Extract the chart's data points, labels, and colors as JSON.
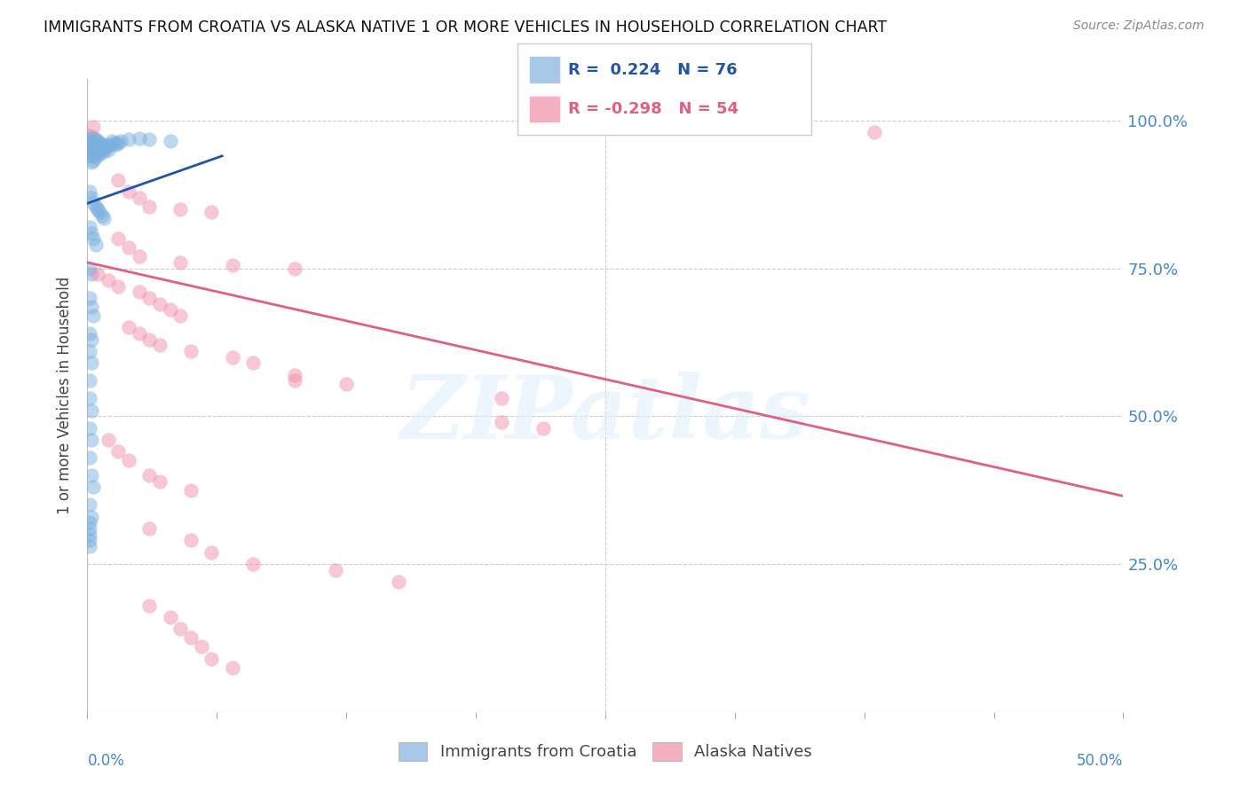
{
  "title": "IMMIGRANTS FROM CROATIA VS ALASKA NATIVE 1 OR MORE VEHICLES IN HOUSEHOLD CORRELATION CHART",
  "source": "Source: ZipAtlas.com",
  "ylabel": "1 or more Vehicles in Household",
  "ytick_values": [
    1.0,
    0.75,
    0.5,
    0.25
  ],
  "ytick_labels_right": [
    "100.0%",
    "75.0%",
    "50.0%",
    "25.0%"
  ],
  "xmin": 0.0,
  "xmax": 0.5,
  "ymin": 0.0,
  "ymax": 1.07,
  "watermark_text": "ZIPatlas",
  "blue_color": "#7ab0de",
  "pink_color": "#f090a8",
  "blue_line_color": "#2255aa",
  "pink_line_color": "#e06080",
  "blue_legend_color": "#a8c8e8",
  "pink_legend_color": "#f4b0c0",
  "blue_R": 0.224,
  "blue_N": 76,
  "pink_R": -0.298,
  "pink_N": 54,
  "blue_scatter": [
    [
      0.001,
      0.975
    ],
    [
      0.001,
      0.965
    ],
    [
      0.001,
      0.955
    ],
    [
      0.002,
      0.97
    ],
    [
      0.002,
      0.96
    ],
    [
      0.002,
      0.95
    ],
    [
      0.002,
      0.94
    ],
    [
      0.002,
      0.93
    ],
    [
      0.003,
      0.972
    ],
    [
      0.003,
      0.962
    ],
    [
      0.003,
      0.952
    ],
    [
      0.003,
      0.942
    ],
    [
      0.003,
      0.932
    ],
    [
      0.004,
      0.968
    ],
    [
      0.004,
      0.958
    ],
    [
      0.004,
      0.948
    ],
    [
      0.004,
      0.938
    ],
    [
      0.005,
      0.965
    ],
    [
      0.005,
      0.955
    ],
    [
      0.005,
      0.945
    ],
    [
      0.006,
      0.963
    ],
    [
      0.006,
      0.953
    ],
    [
      0.006,
      0.943
    ],
    [
      0.007,
      0.96
    ],
    [
      0.007,
      0.95
    ],
    [
      0.008,
      0.958
    ],
    [
      0.008,
      0.948
    ],
    [
      0.009,
      0.955
    ],
    [
      0.01,
      0.96
    ],
    [
      0.01,
      0.95
    ],
    [
      0.011,
      0.958
    ],
    [
      0.012,
      0.965
    ],
    [
      0.013,
      0.962
    ],
    [
      0.014,
      0.96
    ],
    [
      0.015,
      0.962
    ],
    [
      0.016,
      0.965
    ],
    [
      0.02,
      0.968
    ],
    [
      0.025,
      0.97
    ],
    [
      0.03,
      0.968
    ],
    [
      0.04,
      0.965
    ],
    [
      0.001,
      0.88
    ],
    [
      0.002,
      0.87
    ],
    [
      0.003,
      0.86
    ],
    [
      0.004,
      0.855
    ],
    [
      0.005,
      0.85
    ],
    [
      0.006,
      0.845
    ],
    [
      0.007,
      0.84
    ],
    [
      0.008,
      0.835
    ],
    [
      0.001,
      0.82
    ],
    [
      0.002,
      0.81
    ],
    [
      0.003,
      0.8
    ],
    [
      0.004,
      0.79
    ],
    [
      0.001,
      0.75
    ],
    [
      0.002,
      0.74
    ],
    [
      0.001,
      0.7
    ],
    [
      0.002,
      0.685
    ],
    [
      0.003,
      0.67
    ],
    [
      0.001,
      0.64
    ],
    [
      0.002,
      0.63
    ],
    [
      0.001,
      0.61
    ],
    [
      0.002,
      0.59
    ],
    [
      0.001,
      0.56
    ],
    [
      0.001,
      0.53
    ],
    [
      0.002,
      0.51
    ],
    [
      0.001,
      0.48
    ],
    [
      0.002,
      0.46
    ],
    [
      0.001,
      0.43
    ],
    [
      0.002,
      0.4
    ],
    [
      0.003,
      0.38
    ],
    [
      0.001,
      0.35
    ],
    [
      0.002,
      0.33
    ],
    [
      0.001,
      0.32
    ],
    [
      0.001,
      0.31
    ],
    [
      0.001,
      0.3
    ],
    [
      0.001,
      0.29
    ],
    [
      0.001,
      0.28
    ]
  ],
  "pink_scatter": [
    [
      0.003,
      0.99
    ],
    [
      0.38,
      0.98
    ],
    [
      0.015,
      0.9
    ],
    [
      0.02,
      0.88
    ],
    [
      0.025,
      0.87
    ],
    [
      0.03,
      0.855
    ],
    [
      0.045,
      0.85
    ],
    [
      0.06,
      0.845
    ],
    [
      0.015,
      0.8
    ],
    [
      0.02,
      0.785
    ],
    [
      0.025,
      0.77
    ],
    [
      0.045,
      0.76
    ],
    [
      0.07,
      0.755
    ],
    [
      0.1,
      0.75
    ],
    [
      0.005,
      0.74
    ],
    [
      0.01,
      0.73
    ],
    [
      0.015,
      0.72
    ],
    [
      0.025,
      0.71
    ],
    [
      0.03,
      0.7
    ],
    [
      0.035,
      0.69
    ],
    [
      0.04,
      0.68
    ],
    [
      0.045,
      0.67
    ],
    [
      0.02,
      0.65
    ],
    [
      0.025,
      0.64
    ],
    [
      0.03,
      0.63
    ],
    [
      0.035,
      0.62
    ],
    [
      0.05,
      0.61
    ],
    [
      0.07,
      0.6
    ],
    [
      0.08,
      0.59
    ],
    [
      0.1,
      0.57
    ],
    [
      0.1,
      0.56
    ],
    [
      0.125,
      0.555
    ],
    [
      0.2,
      0.53
    ],
    [
      0.2,
      0.49
    ],
    [
      0.22,
      0.48
    ],
    [
      0.01,
      0.46
    ],
    [
      0.015,
      0.44
    ],
    [
      0.02,
      0.425
    ],
    [
      0.03,
      0.4
    ],
    [
      0.035,
      0.39
    ],
    [
      0.05,
      0.375
    ],
    [
      0.03,
      0.31
    ],
    [
      0.05,
      0.29
    ],
    [
      0.06,
      0.27
    ],
    [
      0.08,
      0.25
    ],
    [
      0.12,
      0.24
    ],
    [
      0.15,
      0.22
    ],
    [
      0.03,
      0.18
    ],
    [
      0.04,
      0.16
    ],
    [
      0.045,
      0.14
    ],
    [
      0.05,
      0.125
    ],
    [
      0.055,
      0.11
    ],
    [
      0.06,
      0.09
    ],
    [
      0.07,
      0.075
    ]
  ],
  "blue_line_x": [
    0.0,
    0.065
  ],
  "blue_line_y": [
    0.86,
    0.94
  ],
  "pink_line_x": [
    0.0,
    0.5
  ],
  "pink_line_y": [
    0.76,
    0.365
  ],
  "background_color": "#ffffff",
  "grid_color": "#cccccc",
  "grid_style": "--",
  "title_color": "#111111",
  "ylabel_color": "#444444",
  "right_tick_color": "#4488cc",
  "xtick_minor_count": 8,
  "legend_text_blue": "R =  0.224   N = 76",
  "legend_text_pink": "R = -0.298   N = 54",
  "bottom_legend_blue": "Immigrants from Croatia",
  "bottom_legend_pink": "Alaska Natives"
}
